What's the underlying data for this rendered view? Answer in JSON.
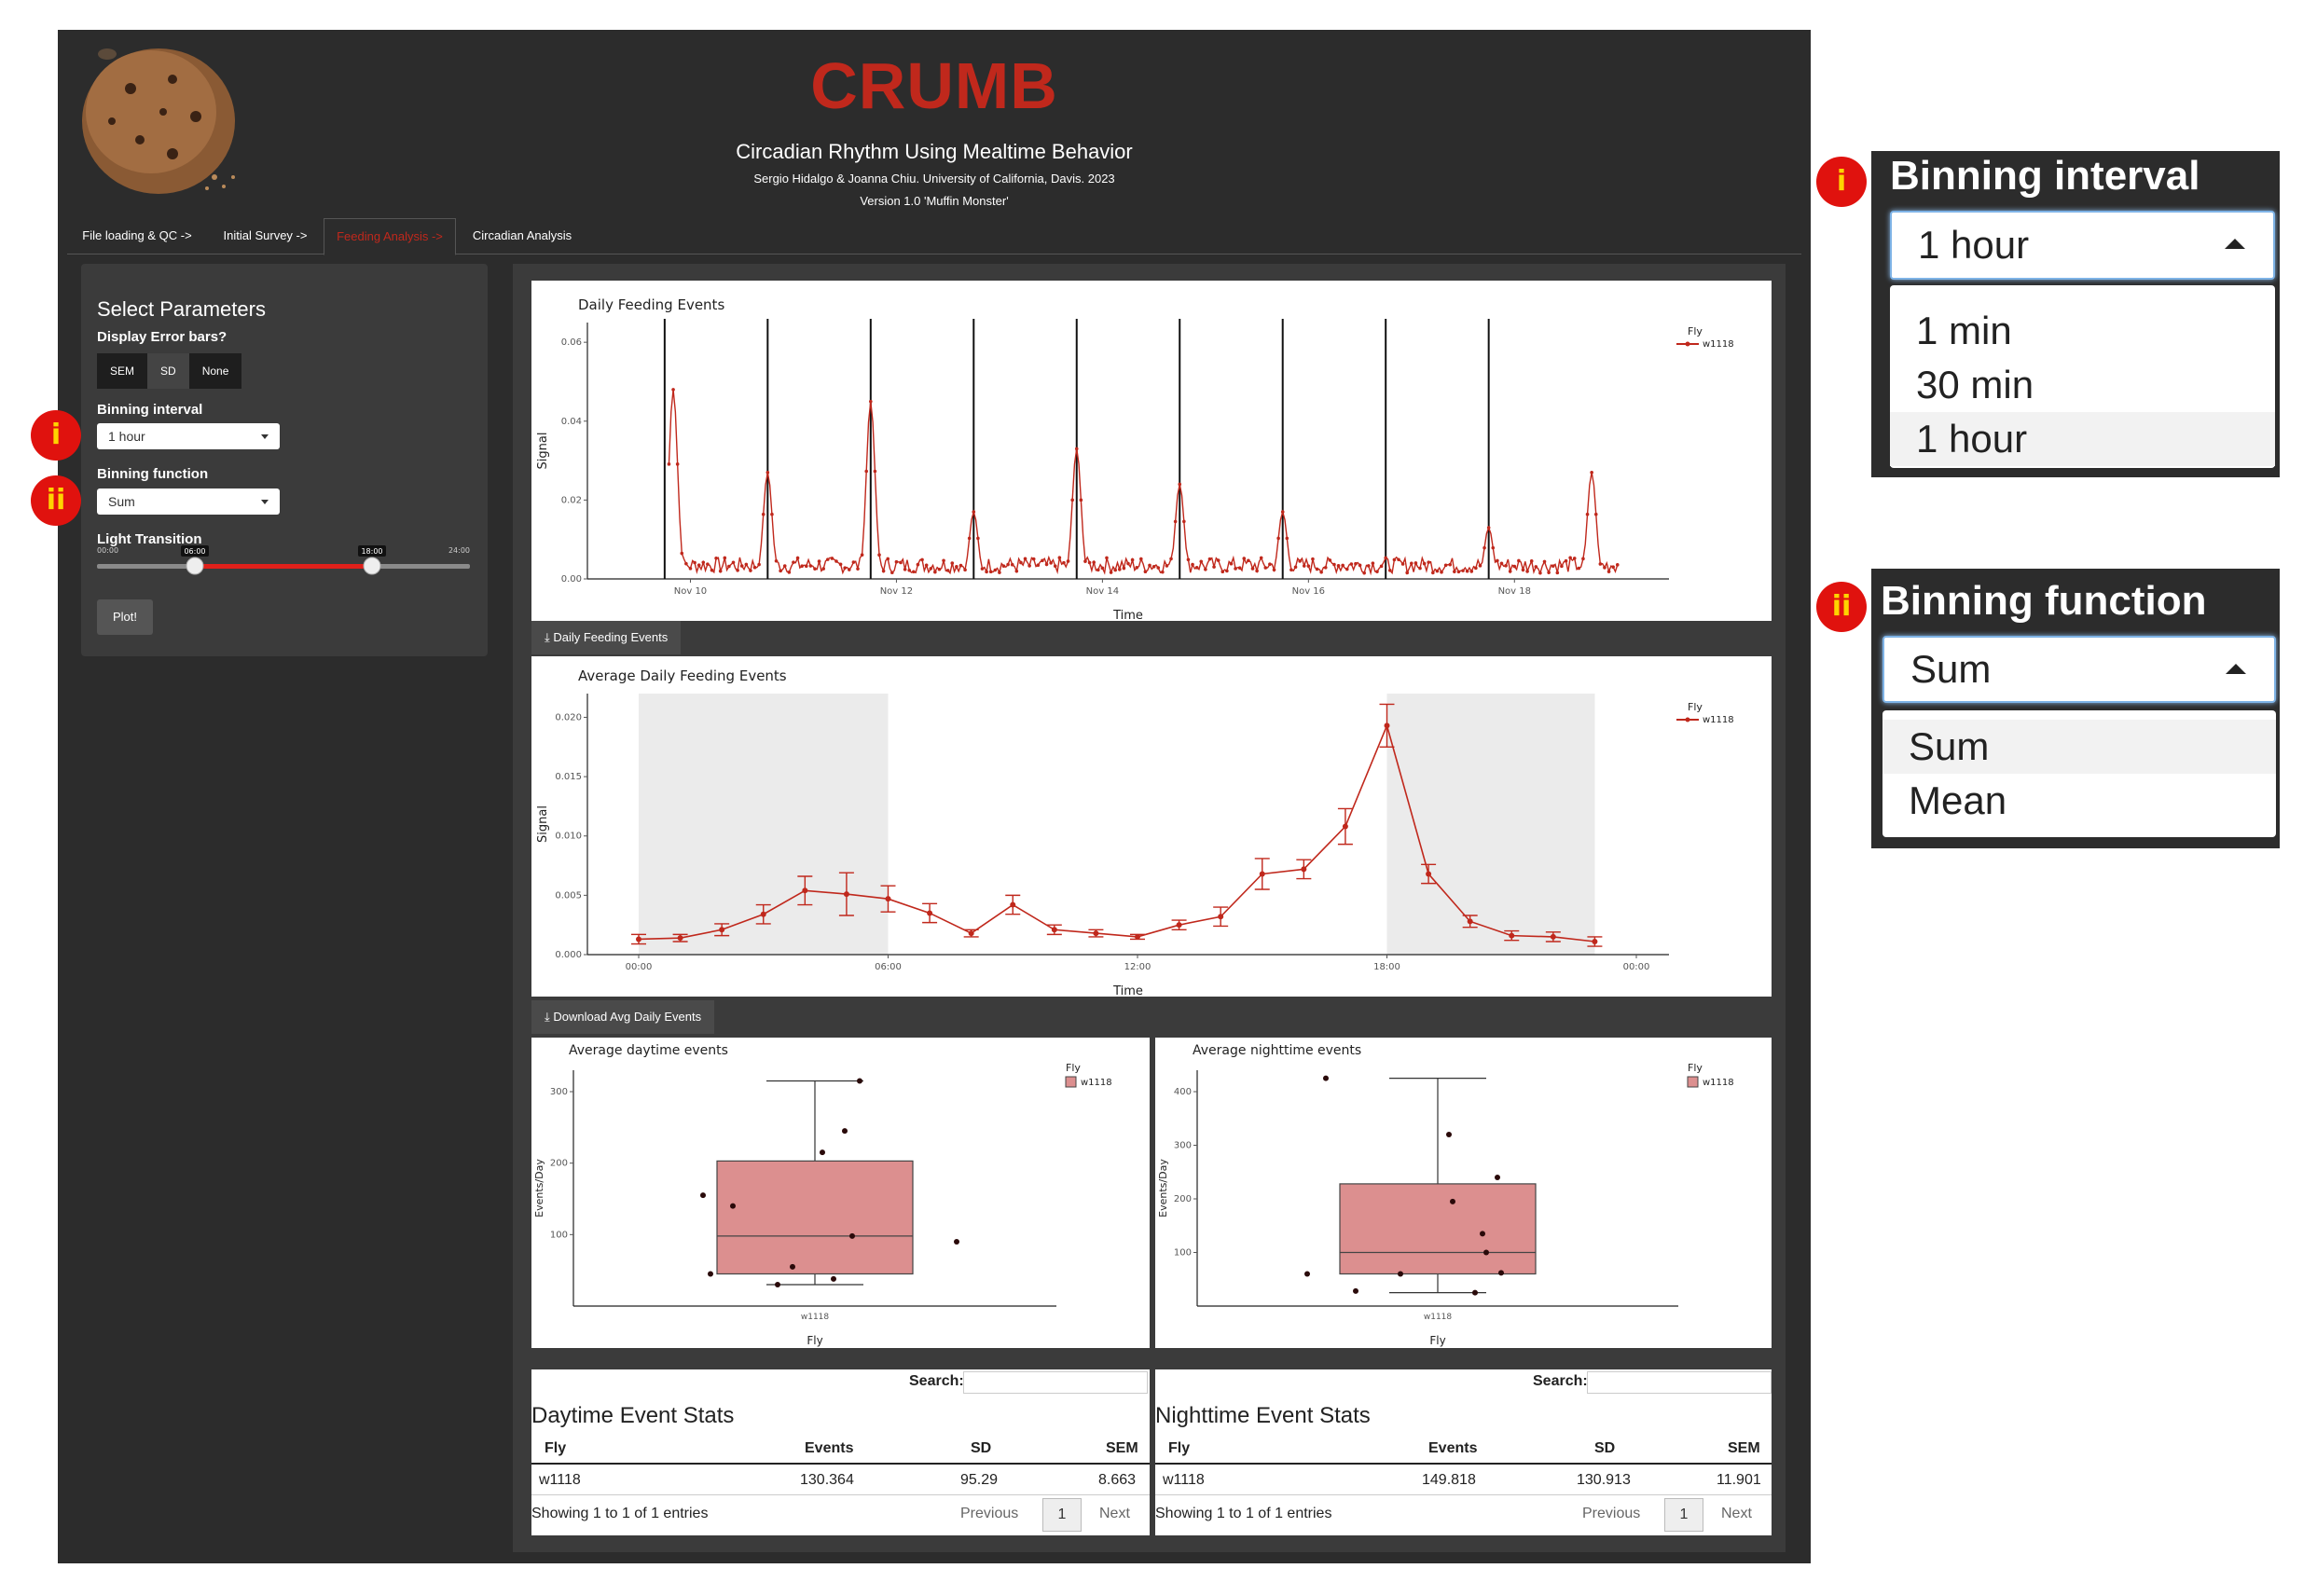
{
  "header": {
    "title": "CRUMB",
    "subtitle": "Circadian Rhythm Using Mealtime Behavior",
    "authors": "Sergio Hidalgo & Joanna Chiu. University of California, Davis. 2023",
    "version": "Version 1.0 'Muffin Monster'"
  },
  "tabs": [
    {
      "label": "File loading & QC ->"
    },
    {
      "label": "Initial Survey ->"
    },
    {
      "label": "Feeding Analysis ->",
      "active": true
    },
    {
      "label": "Circadian Analysis"
    }
  ],
  "params": {
    "title": "Select Parameters",
    "error_bars_label": "Display Error bars?",
    "error_bar_options": [
      "SEM",
      "SD",
      "None"
    ],
    "error_bar_selected": "SD",
    "binning_interval_label": "Binning interval",
    "binning_interval_value": "1 hour",
    "binning_function_label": "Binning function",
    "binning_function_value": "Sum",
    "light_transition_label": "Light Transition",
    "slider": {
      "min_label": "00:00",
      "max_label": "24:00",
      "low_label": "06:00",
      "high_label": "18:00",
      "min": 0,
      "max": 24,
      "low": 6,
      "high": 18
    },
    "plot_button": "Plot!"
  },
  "markers": {
    "i": "i",
    "ii": "ii"
  },
  "downloads": {
    "daily": "Daily Feeding Events",
    "avg": "Download Avg Daily Events"
  },
  "colors": {
    "accent": "#c0281c",
    "box_fill": "#dc8f8f",
    "night_shade": "#ebebeb"
  },
  "chart_data": [
    {
      "type": "line",
      "title": "Daily Feeding Events",
      "xlabel": "Time",
      "ylabel": "Signal",
      "ylim": [
        0,
        0.065
      ],
      "yticks": [
        "0.00",
        "0.02",
        "0.04",
        "0.06"
      ],
      "xticks": [
        "Nov 10",
        "Nov 12",
        "Nov 14",
        "Nov 16",
        "Nov 18"
      ],
      "legend": {
        "title": "Fly",
        "entries": [
          "w1118"
        ],
        "position": "right"
      },
      "day_boundaries": [
        "Nov 9 18:00",
        "Nov 10 18:00",
        "Nov 11 18:00",
        "Nov 12 18:00",
        "Nov 13 18:00",
        "Nov 14 18:00",
        "Nov 15 18:00",
        "Nov 16 18:00",
        "Nov 17 18:00"
      ],
      "series": [
        {
          "name": "w1118",
          "peaks": [
            {
              "x": "Nov 9 20:00",
              "y": 0.048
            },
            {
              "x": "Nov 10 18:00",
              "y": 0.027
            },
            {
              "x": "Nov 11 18:00",
              "y": 0.045
            },
            {
              "x": "Nov 12 18:00",
              "y": 0.017
            },
            {
              "x": "Nov 13 18:00",
              "y": 0.033
            },
            {
              "x": "Nov 14 18:00",
              "y": 0.024
            },
            {
              "x": "Nov 15 18:00",
              "y": 0.017
            },
            {
              "x": "Nov 17 18:00",
              "y": 0.013
            },
            {
              "x": "Nov 18 18:00",
              "y": 0.027
            }
          ]
        }
      ]
    },
    {
      "type": "line",
      "title": "Average Daily Feeding Events",
      "xlabel": "Time",
      "ylabel": "Signal",
      "ylim": [
        0,
        0.022
      ],
      "yticks": [
        "0.000",
        "0.005",
        "0.010",
        "0.015",
        "0.020"
      ],
      "xticks": [
        "00:00",
        "06:00",
        "12:00",
        "18:00",
        "00:00"
      ],
      "legend": {
        "title": "Fly",
        "entries": [
          "w1118"
        ],
        "position": "right"
      },
      "night_shading": [
        [
          0,
          6
        ],
        [
          18,
          23
        ]
      ],
      "series": [
        {
          "name": "w1118",
          "x": [
            0,
            1,
            2,
            3,
            4,
            5,
            6,
            7,
            8,
            9,
            10,
            11,
            12,
            13,
            14,
            15,
            16,
            17,
            18,
            19,
            20,
            21,
            22,
            23
          ],
          "y": [
            0.0013,
            0.0014,
            0.0021,
            0.0034,
            0.0054,
            0.0051,
            0.0047,
            0.0035,
            0.0018,
            0.0042,
            0.0021,
            0.0018,
            0.0015,
            0.0025,
            0.0032,
            0.0068,
            0.0072,
            0.0108,
            0.0193,
            0.0068,
            0.0028,
            0.0016,
            0.0015,
            0.0011
          ],
          "err": [
            0.0004,
            0.0003,
            0.0005,
            0.0008,
            0.0012,
            0.0018,
            0.0011,
            0.0008,
            0.0003,
            0.0008,
            0.0004,
            0.0003,
            0.0002,
            0.0004,
            0.0008,
            0.0013,
            0.0008,
            0.0015,
            0.0018,
            0.0008,
            0.0005,
            0.0004,
            0.0004,
            0.0004
          ]
        }
      ]
    },
    {
      "type": "box",
      "title": "Average daytime events",
      "xlabel": "Fly",
      "ylabel": "Events/Day",
      "ylim": [
        0,
        330
      ],
      "yticks": [
        100,
        200,
        300
      ],
      "categories": [
        "w1118"
      ],
      "legend": {
        "title": "Fly",
        "entries": [
          "w1118"
        ],
        "position": "right"
      },
      "box": {
        "min": 30,
        "q1": 45,
        "median": 98,
        "q3": 203,
        "max": 315
      },
      "points": [
        [
          -0.3,
          155
        ],
        [
          -0.28,
          45
        ],
        [
          -0.22,
          140
        ],
        [
          -0.1,
          30
        ],
        [
          -0.06,
          55
        ],
        [
          0.02,
          215
        ],
        [
          0.05,
          38
        ],
        [
          0.08,
          245
        ],
        [
          0.1,
          98
        ],
        [
          0.12,
          315
        ],
        [
          0.38,
          90
        ]
      ]
    },
    {
      "type": "box",
      "title": "Average nighttime events",
      "xlabel": "Fly",
      "ylabel": "Events/Day",
      "ylim": [
        0,
        440
      ],
      "yticks": [
        100,
        200,
        300,
        400
      ],
      "categories": [
        "w1118"
      ],
      "legend": {
        "title": "Fly",
        "entries": [
          "w1118"
        ],
        "position": "right"
      },
      "box": {
        "min": 25,
        "q1": 60,
        "median": 100,
        "q3": 228,
        "max": 425
      },
      "points": [
        [
          -0.35,
          60
        ],
        [
          -0.3,
          425
        ],
        [
          -0.22,
          28
        ],
        [
          -0.1,
          60
        ],
        [
          0.03,
          320
        ],
        [
          0.04,
          195
        ],
        [
          0.1,
          25
        ],
        [
          0.12,
          135
        ],
        [
          0.13,
          100
        ],
        [
          0.16,
          240
        ],
        [
          0.17,
          62
        ]
      ]
    }
  ],
  "tables": {
    "search_label": "Search:",
    "headers": [
      "Fly",
      "Events",
      "SD",
      "SEM"
    ],
    "day": {
      "title": "Daytime Event Stats",
      "row": [
        "w1118",
        "130.364",
        "95.29",
        "8.663"
      ]
    },
    "night": {
      "title": "Nighttime Event Stats",
      "row": [
        "w1118",
        "149.818",
        "130.913",
        "11.901"
      ]
    },
    "info": "Showing 1 to 1 of 1 entries",
    "previous": "Previous",
    "next": "Next",
    "page": "1"
  },
  "zoom": {
    "interval": {
      "label": "Binning interval",
      "value": "1 hour",
      "options": [
        "1 min",
        "30 min",
        "1 hour"
      ],
      "highlighted": "1 hour"
    },
    "function": {
      "label": "Binning function",
      "value": "Sum",
      "options": [
        "Sum",
        "Mean"
      ],
      "highlighted": "Sum"
    }
  }
}
